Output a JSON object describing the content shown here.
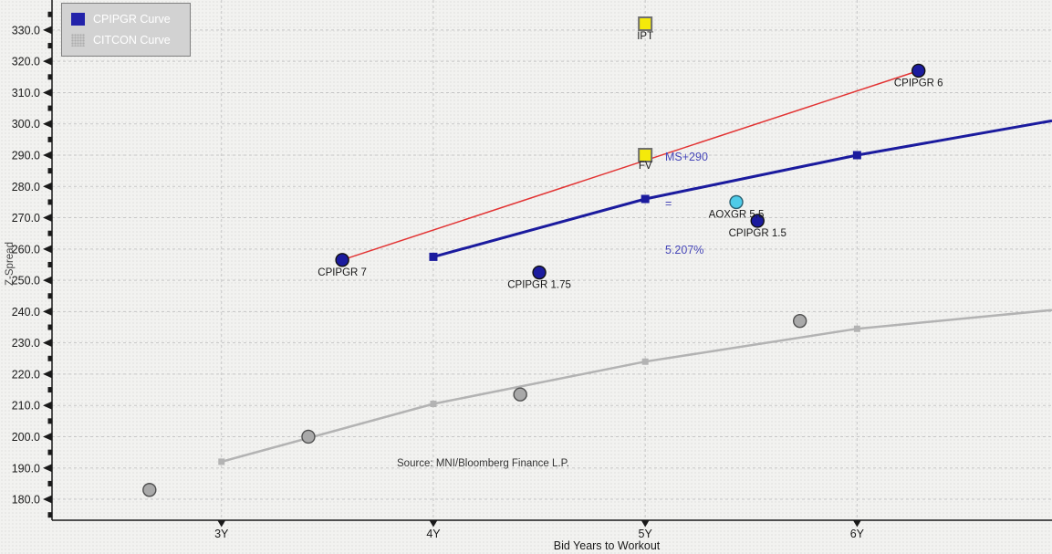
{
  "legend": {
    "items": [
      {
        "label": "CPIPGR Curve",
        "color": "#2222aa"
      },
      {
        "label": "CITCON Curve",
        "color": "#c9c9c9"
      }
    ]
  },
  "annotation": {
    "lines": [
      "MS+290",
      "=",
      "5.207%"
    ],
    "color": "#4747b8"
  },
  "source": "Source: MNI/Bloomberg Finance L.P.",
  "chart_data": {
    "type": "scatter",
    "title": "",
    "xlabel": "Bid Years to Workout",
    "ylabel": "Z-Spread",
    "x_range": [
      2.2,
      6.92
    ],
    "y_range": [
      173.3,
      339.6
    ],
    "grid": true,
    "legend_position": "top-left",
    "x_ticks": [
      {
        "v": 3,
        "label": "3Y"
      },
      {
        "v": 4,
        "label": "4Y"
      },
      {
        "v": 5,
        "label": "5Y"
      },
      {
        "v": 6,
        "label": "6Y"
      }
    ],
    "y_ticks": [
      {
        "v": 180,
        "label": "180.0"
      },
      {
        "v": 190,
        "label": "190.0"
      },
      {
        "v": 200,
        "label": "200.0"
      },
      {
        "v": 210,
        "label": "210.0"
      },
      {
        "v": 220,
        "label": "220.0"
      },
      {
        "v": 230,
        "label": "230.0"
      },
      {
        "v": 240,
        "label": "240.0"
      },
      {
        "v": 250,
        "label": "250.0"
      },
      {
        "v": 260,
        "label": "260.0"
      },
      {
        "v": 270,
        "label": "270.0"
      },
      {
        "v": 280,
        "label": "280.0"
      },
      {
        "v": 290,
        "label": "290.0"
      },
      {
        "v": 300,
        "label": "300.0"
      },
      {
        "v": 310,
        "label": "310.0"
      },
      {
        "v": 320,
        "label": "320.0"
      },
      {
        "v": 330,
        "label": "330.0"
      }
    ],
    "y_minor_ticks": [
      175,
      185,
      195,
      205,
      215,
      225,
      235,
      245,
      255,
      265,
      275,
      285,
      295,
      305,
      315,
      325,
      335
    ],
    "series": [
      {
        "name": "CPIPGR Curve",
        "color": "#1b1b9e",
        "width": 3,
        "marker": "square",
        "marker_size": 9,
        "x": [
          4,
          5,
          6,
          6.92
        ],
        "y": [
          257.5,
          276,
          290,
          301
        ],
        "markers_at": [
          0,
          1,
          2
        ]
      },
      {
        "name": "CITCON Curve",
        "color": "#b3b3b3",
        "width": 2.5,
        "marker": "square",
        "marker_size": 7,
        "x": [
          3,
          4,
          5,
          6,
          6.92
        ],
        "y": [
          192,
          210.5,
          224,
          234.5,
          240.5
        ],
        "markers_at": [
          0,
          1,
          2,
          3
        ]
      },
      {
        "name": "MS spread connector",
        "color": "#e23333",
        "width": 1.5,
        "marker": "none",
        "marker_size": 0,
        "x": [
          3.57,
          6.29
        ],
        "y": [
          256.5,
          317
        ],
        "markers_at": []
      }
    ],
    "points": [
      {
        "label": "CPIPGR 7",
        "x": 3.57,
        "y": 256.5,
        "shape": "circle",
        "fill": "#1b1b9e",
        "stroke": "#111111",
        "r": 7,
        "label_dy": 17
      },
      {
        "label": "CPIPGR 1.75",
        "x": 4.5,
        "y": 252.5,
        "shape": "circle",
        "fill": "#1b1b9e",
        "stroke": "#111111",
        "r": 7,
        "label_dy": 17
      },
      {
        "label": "CPIPGR 1.5",
        "x": 5.53,
        "y": 269,
        "shape": "circle",
        "fill": "#1b1b9e",
        "stroke": "#111111",
        "r": 7,
        "label_dy": 17
      },
      {
        "label": "CPIPGR 6",
        "x": 6.29,
        "y": 317,
        "shape": "circle",
        "fill": "#1b1b9e",
        "stroke": "#111111",
        "r": 7,
        "label_dy": 17
      },
      {
        "label": "AOXGR 5.5",
        "x": 5.43,
        "y": 275,
        "shape": "circle",
        "fill": "#4ecbe8",
        "stroke": "#2a5f70",
        "r": 7,
        "label_dy": 17
      },
      {
        "label": "IPT",
        "x": 5.0,
        "y": 332,
        "shape": "square",
        "fill": "#f4ea0a",
        "stroke": "#6e6e6e",
        "r": 7,
        "label_dy": 17
      },
      {
        "label": "FV",
        "x": 5.0,
        "y": 290,
        "shape": "square",
        "fill": "#f4ea0a",
        "stroke": "#6e6e6e",
        "r": 7,
        "label_dy": 15
      },
      {
        "label": "",
        "x": 2.66,
        "y": 183,
        "shape": "circle",
        "fill": "#a9a9a9",
        "stroke": "#4f4f4f",
        "r": 7,
        "label_dy": 0
      },
      {
        "label": "",
        "x": 3.41,
        "y": 200,
        "shape": "circle",
        "fill": "#a9a9a9",
        "stroke": "#4f4f4f",
        "r": 7,
        "label_dy": 0
      },
      {
        "label": "",
        "x": 4.41,
        "y": 213.5,
        "shape": "circle",
        "fill": "#a9a9a9",
        "stroke": "#4f4f4f",
        "r": 7,
        "label_dy": 0
      },
      {
        "label": "",
        "x": 5.73,
        "y": 237,
        "shape": "circle",
        "fill": "#a9a9a9",
        "stroke": "#4f4f4f",
        "r": 7,
        "label_dy": 0
      }
    ]
  }
}
